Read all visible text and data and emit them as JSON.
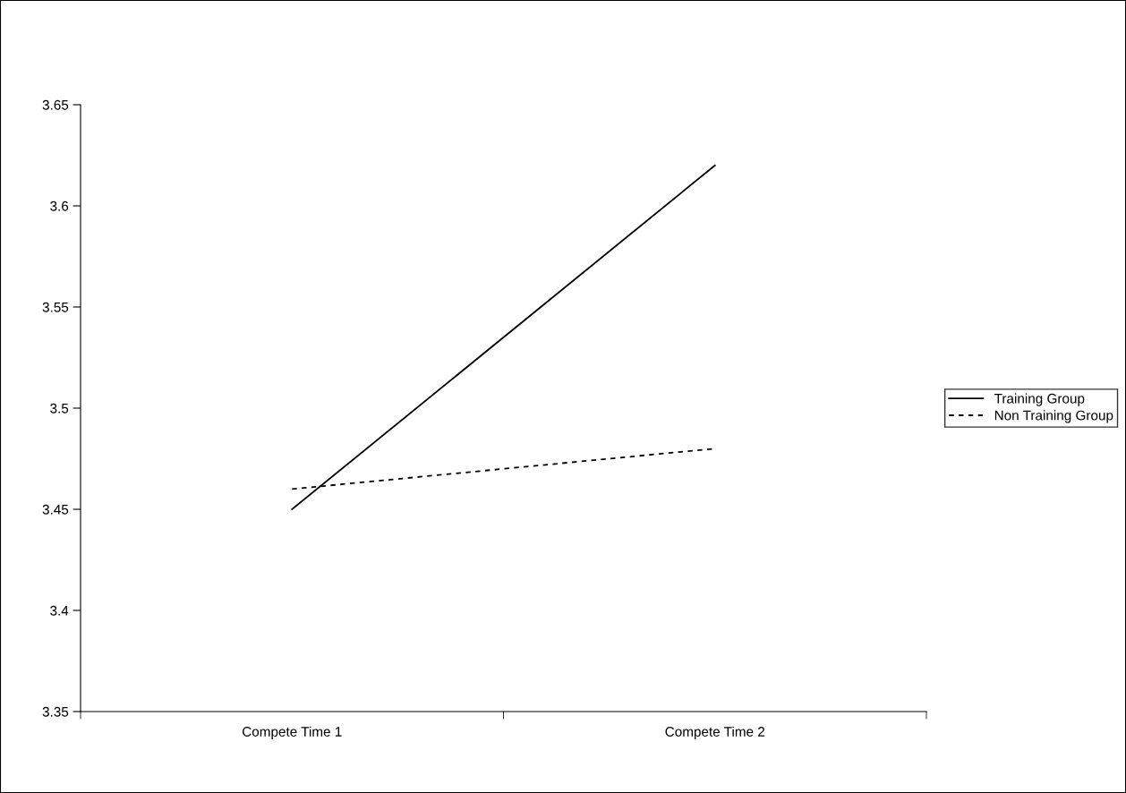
{
  "chart_data": {
    "type": "line",
    "categories": [
      "Compete Time 1",
      "Compete Time 2"
    ],
    "series": [
      {
        "name": "Training Group",
        "color": "#000000",
        "line_style": "solid",
        "values": [
          3.45,
          3.62
        ]
      },
      {
        "name": "Non Training Group",
        "color": "#000000",
        "line_style": "dotted",
        "values": [
          3.46,
          3.48
        ]
      }
    ],
    "ylim": [
      3.35,
      3.65
    ],
    "yticks": [
      3.35,
      3.4,
      3.45,
      3.5,
      3.55,
      3.6,
      3.65
    ],
    "grid": false,
    "legend": "right",
    "marker": "none"
  }
}
